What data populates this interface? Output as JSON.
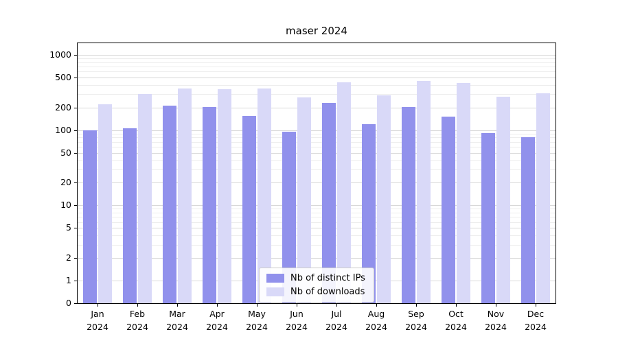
{
  "title": "maser 2024",
  "chart_data": {
    "type": "bar",
    "title": "maser 2024",
    "categories": [
      "Jan 2024",
      "Feb 2024",
      "Mar 2024",
      "Apr 2024",
      "May 2024",
      "Jun 2024",
      "Jul 2024",
      "Aug 2024",
      "Sep 2024",
      "Oct 2024",
      "Nov 2024",
      "Dec 2024"
    ],
    "series": [
      {
        "name": "Nb of distinct IPs",
        "color": "#9191ec",
        "values": [
          100,
          105,
          210,
          205,
          155,
          95,
          230,
          120,
          205,
          150,
          92,
          80
        ]
      },
      {
        "name": "Nb of downloads",
        "color": "#d9d9f8",
        "values": [
          220,
          305,
          360,
          350,
          355,
          270,
          430,
          290,
          450,
          420,
          280,
          310
        ]
      }
    ],
    "xlabel": "",
    "ylabel": "",
    "y_scale": "symlog",
    "y_ticks": [
      0,
      1,
      2,
      5,
      10,
      20,
      50,
      100,
      200,
      500,
      1000
    ],
    "y_minor_ticks": [
      3,
      4,
      6,
      7,
      8,
      9,
      30,
      40,
      60,
      70,
      80,
      90,
      300,
      400,
      600,
      700,
      800,
      900
    ],
    "ylim": [
      0,
      1500
    ],
    "grid": true,
    "legend_position": "lower center"
  }
}
